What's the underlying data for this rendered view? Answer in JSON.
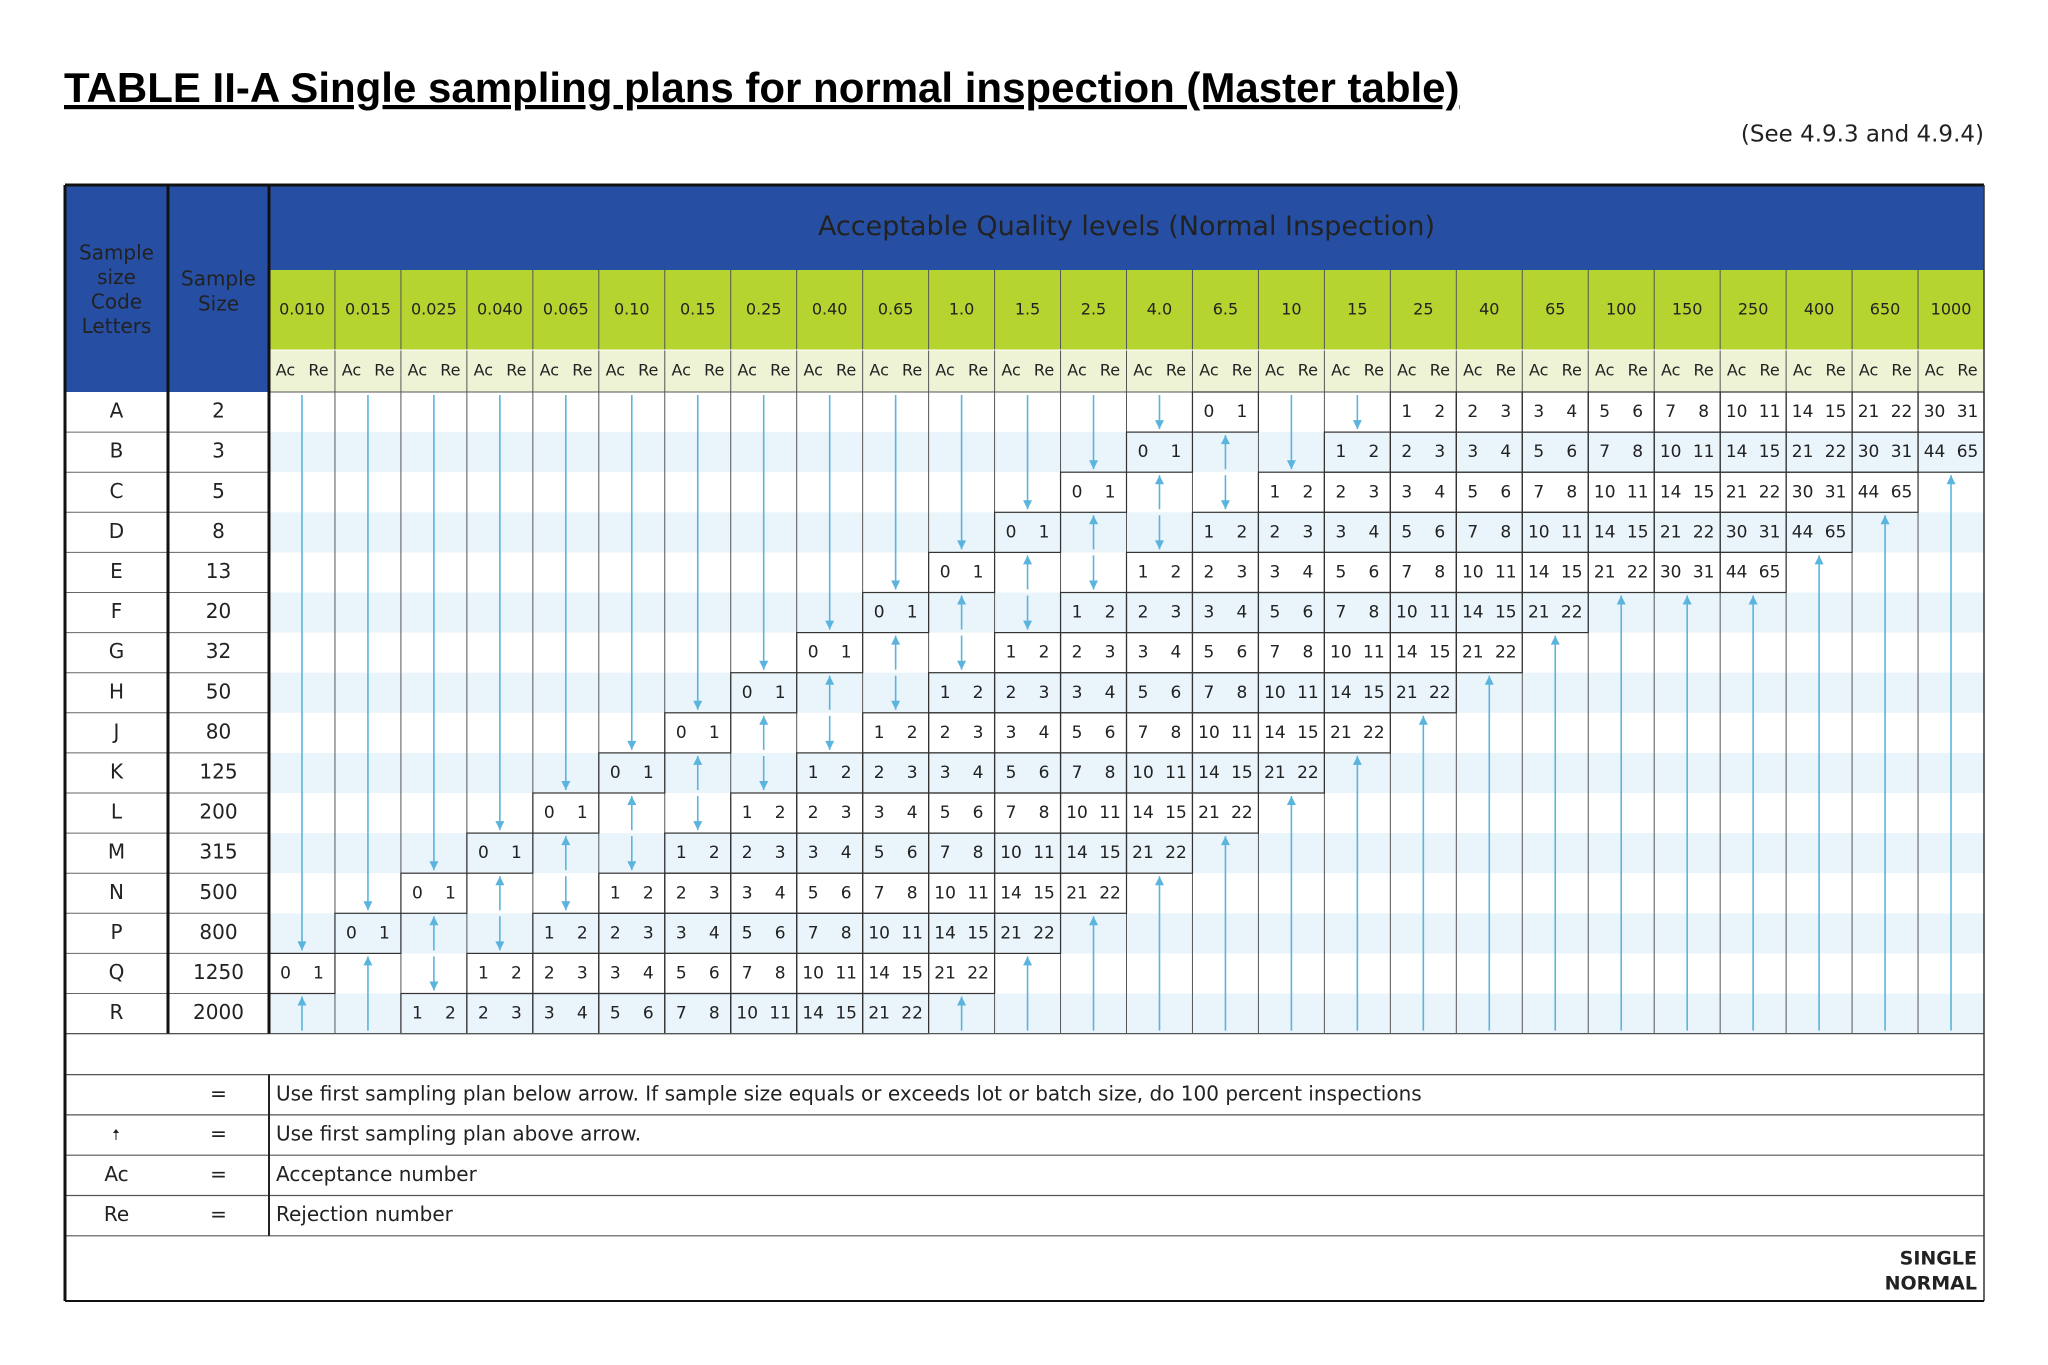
{
  "title": "TABLE II-A Single sampling plans for normal inspection (Master table)",
  "reference": "(See 4.9.3 and 4.9.4)",
  "table": {
    "code_letters_header": [
      "Sample",
      "size",
      "Code",
      "Letters"
    ],
    "sample_size_header": [
      "Sample",
      "Size"
    ],
    "aql_header": "Acceptable Quality levels (Normal Inspection)",
    "aql_levels": [
      "0.010",
      "0.015",
      "0.025",
      "0.040",
      "0.065",
      "0.10",
      "0.15",
      "0.25",
      "0.40",
      "0.65",
      "1.0",
      "1.5",
      "2.5",
      "4.0",
      "6.5",
      "10",
      "15",
      "25",
      "40",
      "65",
      "100",
      "150",
      "250",
      "400",
      "650",
      "1000"
    ],
    "ac_label": "Ac",
    "re_label": "Re",
    "rows": [
      {
        "code": "A",
        "sample_size": "2",
        "plans": [
          null,
          null,
          null,
          null,
          null,
          null,
          null,
          null,
          null,
          null,
          null,
          null,
          null,
          null,
          [
            0,
            1
          ],
          null,
          null,
          [
            1,
            2
          ],
          [
            2,
            3
          ],
          [
            3,
            4
          ],
          [
            5,
            6
          ],
          [
            7,
            8
          ],
          [
            10,
            11
          ],
          [
            14,
            15
          ],
          [
            21,
            22
          ],
          [
            30,
            31
          ]
        ]
      },
      {
        "code": "B",
        "sample_size": "3",
        "plans": [
          null,
          null,
          null,
          null,
          null,
          null,
          null,
          null,
          null,
          null,
          null,
          null,
          null,
          [
            0,
            1
          ],
          null,
          null,
          [
            1,
            2
          ],
          [
            2,
            3
          ],
          [
            3,
            4
          ],
          [
            5,
            6
          ],
          [
            7,
            8
          ],
          [
            10,
            11
          ],
          [
            14,
            15
          ],
          [
            21,
            22
          ],
          [
            30,
            31
          ],
          [
            44,
            65
          ]
        ]
      },
      {
        "code": "C",
        "sample_size": "5",
        "plans": [
          null,
          null,
          null,
          null,
          null,
          null,
          null,
          null,
          null,
          null,
          null,
          null,
          [
            0,
            1
          ],
          null,
          null,
          [
            1,
            2
          ],
          [
            2,
            3
          ],
          [
            3,
            4
          ],
          [
            5,
            6
          ],
          [
            7,
            8
          ],
          [
            10,
            11
          ],
          [
            14,
            15
          ],
          [
            21,
            22
          ],
          [
            30,
            31
          ],
          [
            44,
            65
          ],
          null
        ]
      },
      {
        "code": "D",
        "sample_size": "8",
        "plans": [
          null,
          null,
          null,
          null,
          null,
          null,
          null,
          null,
          null,
          null,
          null,
          [
            0,
            1
          ],
          null,
          null,
          [
            1,
            2
          ],
          [
            2,
            3
          ],
          [
            3,
            4
          ],
          [
            5,
            6
          ],
          [
            7,
            8
          ],
          [
            10,
            11
          ],
          [
            14,
            15
          ],
          [
            21,
            22
          ],
          [
            30,
            31
          ],
          [
            44,
            65
          ],
          null,
          null
        ]
      },
      {
        "code": "E",
        "sample_size": "13",
        "plans": [
          null,
          null,
          null,
          null,
          null,
          null,
          null,
          null,
          null,
          null,
          [
            0,
            1
          ],
          null,
          null,
          [
            1,
            2
          ],
          [
            2,
            3
          ],
          [
            3,
            4
          ],
          [
            5,
            6
          ],
          [
            7,
            8
          ],
          [
            10,
            11
          ],
          [
            14,
            15
          ],
          [
            21,
            22
          ],
          [
            30,
            31
          ],
          [
            44,
            65
          ],
          null,
          null,
          null
        ]
      },
      {
        "code": "F",
        "sample_size": "20",
        "plans": [
          null,
          null,
          null,
          null,
          null,
          null,
          null,
          null,
          null,
          [
            0,
            1
          ],
          null,
          null,
          [
            1,
            2
          ],
          [
            2,
            3
          ],
          [
            3,
            4
          ],
          [
            5,
            6
          ],
          [
            7,
            8
          ],
          [
            10,
            11
          ],
          [
            14,
            15
          ],
          [
            21,
            22
          ],
          null,
          null,
          null,
          null,
          null,
          null
        ]
      },
      {
        "code": "G",
        "sample_size": "32",
        "plans": [
          null,
          null,
          null,
          null,
          null,
          null,
          null,
          null,
          [
            0,
            1
          ],
          null,
          null,
          [
            1,
            2
          ],
          [
            2,
            3
          ],
          [
            3,
            4
          ],
          [
            5,
            6
          ],
          [
            7,
            8
          ],
          [
            10,
            11
          ],
          [
            14,
            15
          ],
          [
            21,
            22
          ],
          null,
          null,
          null,
          null,
          null,
          null,
          null
        ]
      },
      {
        "code": "H",
        "sample_size": "50",
        "plans": [
          null,
          null,
          null,
          null,
          null,
          null,
          null,
          [
            0,
            1
          ],
          null,
          null,
          [
            1,
            2
          ],
          [
            2,
            3
          ],
          [
            3,
            4
          ],
          [
            5,
            6
          ],
          [
            7,
            8
          ],
          [
            10,
            11
          ],
          [
            14,
            15
          ],
          [
            21,
            22
          ],
          null,
          null,
          null,
          null,
          null,
          null,
          null,
          null
        ]
      },
      {
        "code": "J",
        "sample_size": "80",
        "plans": [
          null,
          null,
          null,
          null,
          null,
          null,
          [
            0,
            1
          ],
          null,
          null,
          [
            1,
            2
          ],
          [
            2,
            3
          ],
          [
            3,
            4
          ],
          [
            5,
            6
          ],
          [
            7,
            8
          ],
          [
            10,
            11
          ],
          [
            14,
            15
          ],
          [
            21,
            22
          ],
          null,
          null,
          null,
          null,
          null,
          null,
          null,
          null,
          null
        ]
      },
      {
        "code": "K",
        "sample_size": "125",
        "plans": [
          null,
          null,
          null,
          null,
          null,
          [
            0,
            1
          ],
          null,
          null,
          [
            1,
            2
          ],
          [
            2,
            3
          ],
          [
            3,
            4
          ],
          [
            5,
            6
          ],
          [
            7,
            8
          ],
          [
            10,
            11
          ],
          [
            14,
            15
          ],
          [
            21,
            22
          ],
          null,
          null,
          null,
          null,
          null,
          null,
          null,
          null,
          null,
          null
        ]
      },
      {
        "code": "L",
        "sample_size": "200",
        "plans": [
          null,
          null,
          null,
          null,
          [
            0,
            1
          ],
          null,
          null,
          [
            1,
            2
          ],
          [
            2,
            3
          ],
          [
            3,
            4
          ],
          [
            5,
            6
          ],
          [
            7,
            8
          ],
          [
            10,
            11
          ],
          [
            14,
            15
          ],
          [
            21,
            22
          ],
          null,
          null,
          null,
          null,
          null,
          null,
          null,
          null,
          null,
          null,
          null
        ]
      },
      {
        "code": "M",
        "sample_size": "315",
        "plans": [
          null,
          null,
          null,
          [
            0,
            1
          ],
          null,
          null,
          [
            1,
            2
          ],
          [
            2,
            3
          ],
          [
            3,
            4
          ],
          [
            5,
            6
          ],
          [
            7,
            8
          ],
          [
            10,
            11
          ],
          [
            14,
            15
          ],
          [
            21,
            22
          ],
          null,
          null,
          null,
          null,
          null,
          null,
          null,
          null,
          null,
          null,
          null,
          null
        ]
      },
      {
        "code": "N",
        "sample_size": "500",
        "plans": [
          null,
          null,
          [
            0,
            1
          ],
          null,
          null,
          [
            1,
            2
          ],
          [
            2,
            3
          ],
          [
            3,
            4
          ],
          [
            5,
            6
          ],
          [
            7,
            8
          ],
          [
            10,
            11
          ],
          [
            14,
            15
          ],
          [
            21,
            22
          ],
          null,
          null,
          null,
          null,
          null,
          null,
          null,
          null,
          null,
          null,
          null,
          null,
          null
        ]
      },
      {
        "code": "P",
        "sample_size": "800",
        "plans": [
          null,
          [
            0,
            1
          ],
          null,
          null,
          [
            1,
            2
          ],
          [
            2,
            3
          ],
          [
            3,
            4
          ],
          [
            5,
            6
          ],
          [
            7,
            8
          ],
          [
            10,
            11
          ],
          [
            14,
            15
          ],
          [
            21,
            22
          ],
          null,
          null,
          null,
          null,
          null,
          null,
          null,
          null,
          null,
          null,
          null,
          null,
          null,
          null
        ]
      },
      {
        "code": "Q",
        "sample_size": "1250",
        "plans": [
          [
            0,
            1
          ],
          null,
          null,
          [
            1,
            2
          ],
          [
            2,
            3
          ],
          [
            3,
            4
          ],
          [
            5,
            6
          ],
          [
            7,
            8
          ],
          [
            10,
            11
          ],
          [
            14,
            15
          ],
          [
            21,
            22
          ],
          null,
          null,
          null,
          null,
          null,
          null,
          null,
          null,
          null,
          null,
          null,
          null,
          null,
          null,
          null
        ]
      },
      {
        "code": "R",
        "sample_size": "2000",
        "plans": [
          null,
          null,
          [
            1,
            2
          ],
          [
            2,
            3
          ],
          [
            3,
            4
          ],
          [
            5,
            6
          ],
          [
            7,
            8
          ],
          [
            10,
            11
          ],
          [
            14,
            15
          ],
          [
            21,
            22
          ],
          null,
          null,
          null,
          null,
          null,
          null,
          null,
          null,
          null,
          null,
          null,
          null,
          null,
          null,
          null,
          null
        ]
      }
    ]
  },
  "legend": [
    {
      "equals": "=",
      "text": "Use first sampling plan below arrow. If sample size equals or exceeds lot or batch size, do 100 percent inspections"
    },
    {
      "equals": "=",
      "text": "Use first sampling plan above arrow."
    },
    {
      "symbol": "Ac",
      "equals": "=",
      "text": "Acceptance number"
    },
    {
      "symbol": "Re",
      "equals": "=",
      "text": "Rejection number"
    }
  ],
  "footer": [
    "SINGLE",
    "NORMAL"
  ]
}
